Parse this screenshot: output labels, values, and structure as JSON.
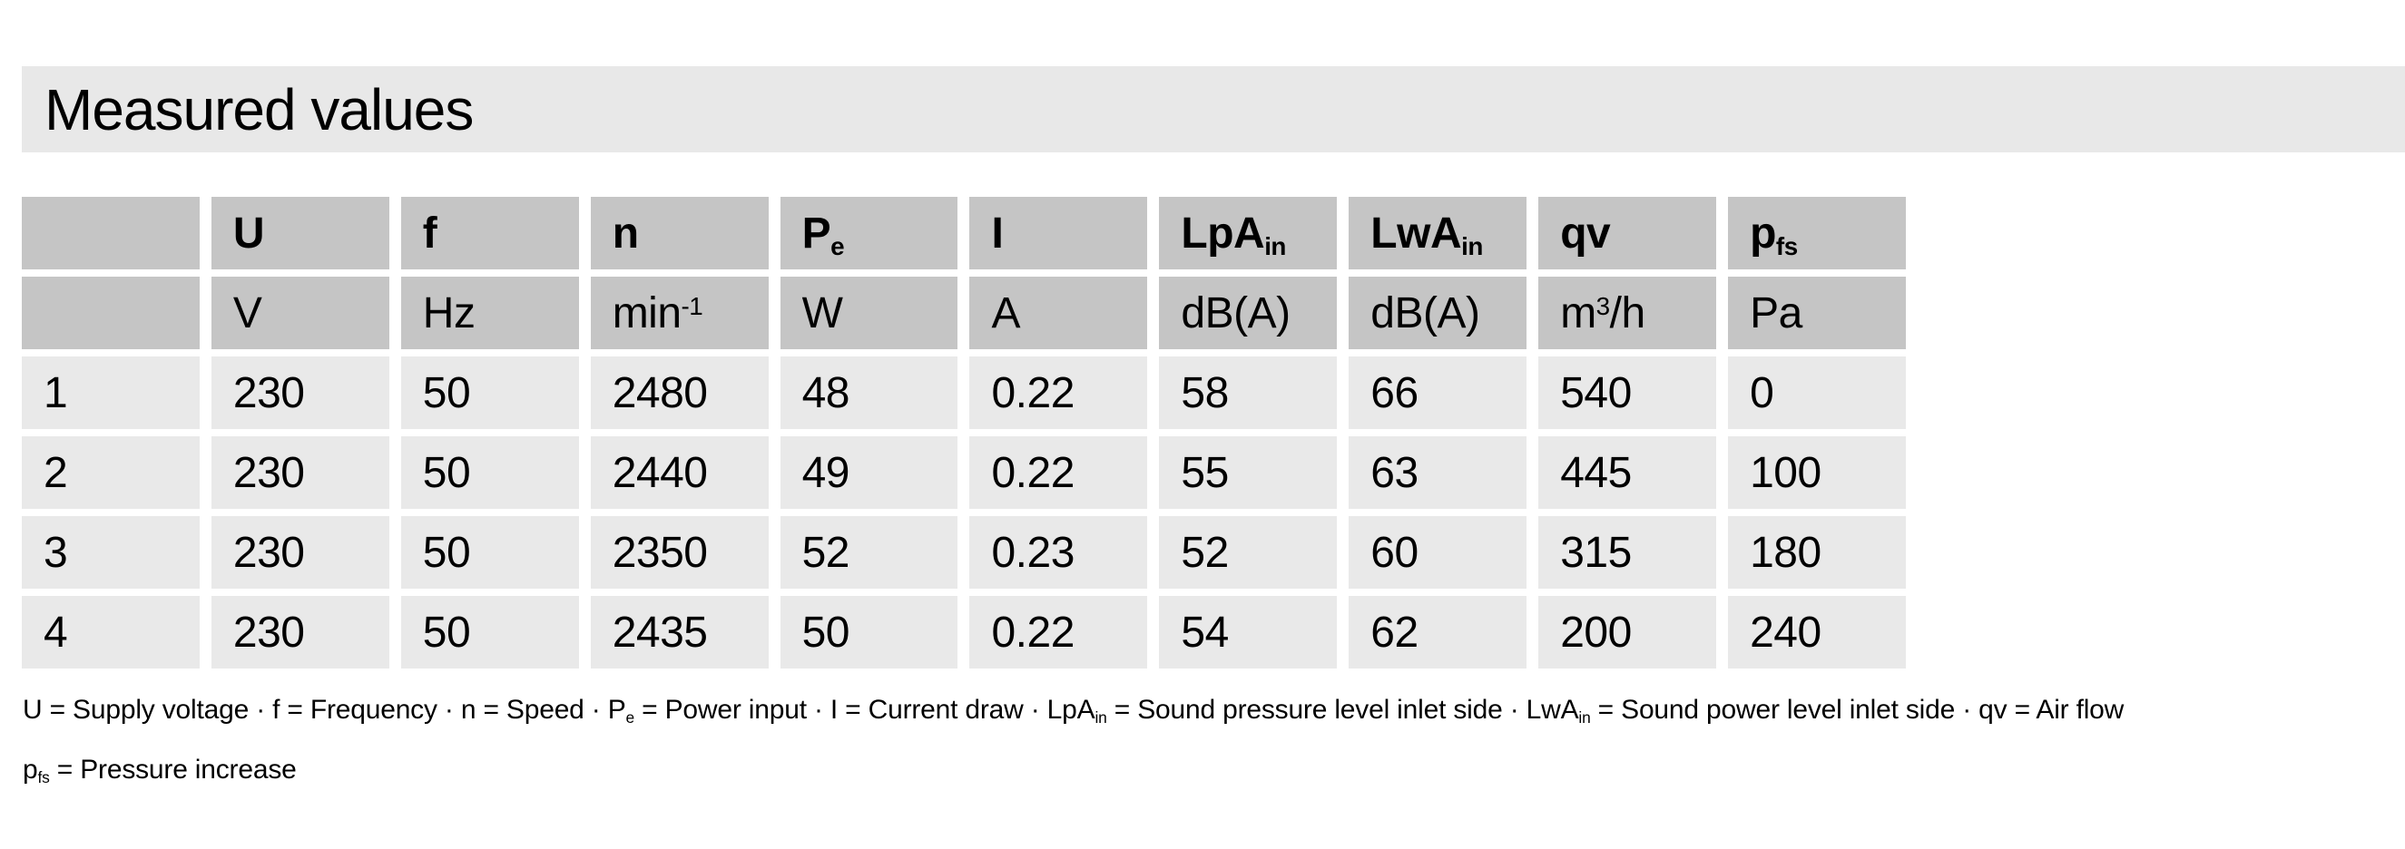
{
  "title": "Measured values",
  "colors": {
    "title_band_bg": "#e8e8e8",
    "header_cell_bg": "#c5c5c5",
    "data_cell_bg": "#e9e9e9",
    "text": "#000000"
  },
  "table": {
    "columns": [
      {
        "sym": "",
        "sub": "",
        "unit": "",
        "unit_sup": "",
        "unit_post": ""
      },
      {
        "sym": "U",
        "sub": "",
        "unit": "V",
        "unit_sup": "",
        "unit_post": ""
      },
      {
        "sym": "f",
        "sub": "",
        "unit": "Hz",
        "unit_sup": "",
        "unit_post": ""
      },
      {
        "sym": "n",
        "sub": "",
        "unit": "min",
        "unit_sup": "-1",
        "unit_post": ""
      },
      {
        "sym": "P",
        "sub": "e",
        "unit": "W",
        "unit_sup": "",
        "unit_post": ""
      },
      {
        "sym": "I",
        "sub": "",
        "unit": "A",
        "unit_sup": "",
        "unit_post": ""
      },
      {
        "sym": "LpA",
        "sub": "in",
        "unit": "dB(A)",
        "unit_sup": "",
        "unit_post": ""
      },
      {
        "sym": "LwA",
        "sub": "in",
        "unit": "dB(A)",
        "unit_sup": "",
        "unit_post": ""
      },
      {
        "sym": "qv",
        "sub": "",
        "unit": "m",
        "unit_sup": "3",
        "unit_post": "/h"
      },
      {
        "sym": "p",
        "sub": "fs",
        "unit": "Pa",
        "unit_sup": "",
        "unit_post": ""
      }
    ],
    "rows": [
      [
        "1",
        "230",
        "50",
        "2480",
        "48",
        "0.22",
        "58",
        "66",
        "540",
        "0"
      ],
      [
        "2",
        "230",
        "50",
        "2440",
        "49",
        "0.22",
        "55",
        "63",
        "445",
        "100"
      ],
      [
        "3",
        "230",
        "50",
        "2350",
        "52",
        "0.23",
        "52",
        "60",
        "315",
        "180"
      ],
      [
        "4",
        "230",
        "50",
        "2435",
        "50",
        "0.22",
        "54",
        "62",
        "200",
        "240"
      ]
    ]
  },
  "legend": {
    "line1": [
      {
        "t": "U = Supply voltage · f = Frequency · n = Speed · P"
      },
      {
        "t": "e",
        "s": "sub"
      },
      {
        "t": " = Power input · I = Current draw · LpA"
      },
      {
        "t": "in",
        "s": "sub"
      },
      {
        "t": " = Sound pressure level inlet side · LwA"
      },
      {
        "t": "in",
        "s": "sub"
      },
      {
        "t": " = Sound power level inlet side · qv = Air flow"
      }
    ],
    "line2": [
      {
        "t": "p"
      },
      {
        "t": "fs",
        "s": "sub"
      },
      {
        "t": " = Pressure increase"
      }
    ]
  }
}
